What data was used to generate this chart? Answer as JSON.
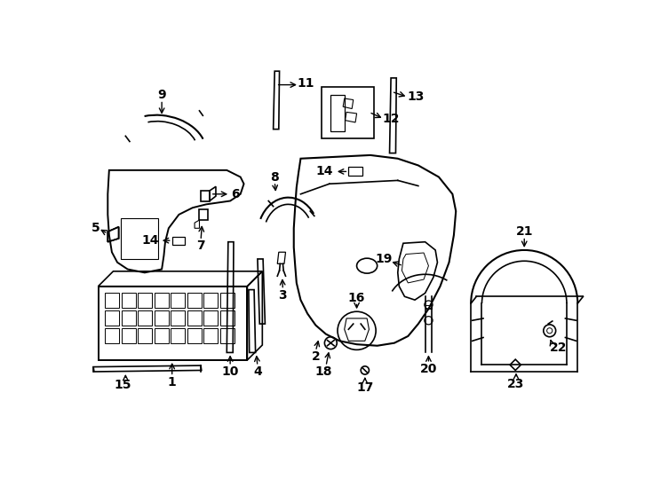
{
  "bg_color": "#ffffff",
  "line_color": "#000000",
  "lw": 1.2
}
